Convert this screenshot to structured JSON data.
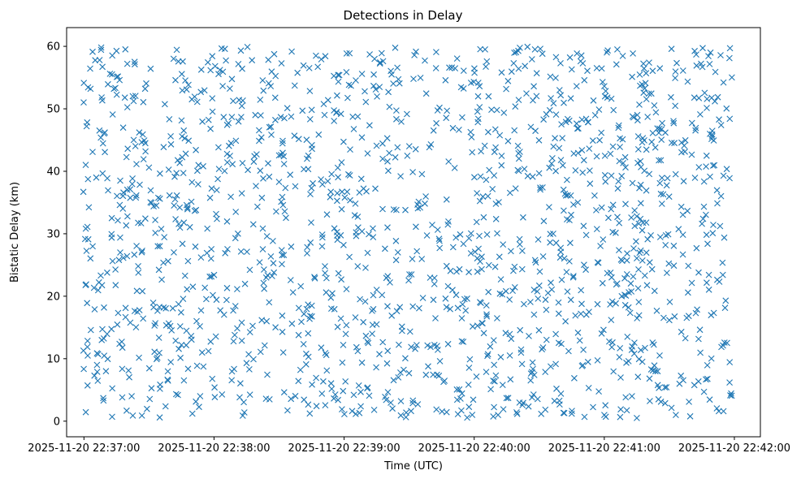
{
  "chart_data": {
    "type": "scatter",
    "title": "Detections in Delay",
    "xlabel": "Time (UTC)",
    "ylabel": "Bistatic Delay (km)",
    "marker": "x",
    "color": "#1f77b4",
    "x_ticks": [
      "2025-11-20 22:37:00",
      "2025-11-20 22:38:00",
      "2025-11-20 22:39:00",
      "2025-11-20 22:40:00",
      "2025-11-20 22:41:00",
      "2025-11-20 22:42:00"
    ],
    "y_ticks": [
      "0",
      "10",
      "20",
      "30",
      "40",
      "50",
      "60"
    ],
    "xlim": [
      "2025-11-20 22:36:52",
      "2025-11-20 22:42:12"
    ],
    "ylim": [
      -2.5,
      63
    ],
    "point_count": 1600,
    "x_range": [
      "2025-11-20 22:36:59",
      "2025-11-20 22:41:59"
    ],
    "y_range": [
      0.5,
      60
    ],
    "points": [
      [
        "2025-11-20 22:37:03",
        53.2
      ],
      [
        "2025-11-20 22:37:12",
        55.6
      ],
      [
        "2025-11-20 22:37:20",
        57.2
      ],
      [
        "2025-11-20 22:37:40",
        45.6
      ],
      [
        "2025-11-20 22:38:05",
        59.6
      ],
      [
        "2025-11-20 22:38:47",
        58.5
      ],
      [
        "2025-11-20 22:39:10",
        51.1
      ],
      [
        "2025-11-20 22:39:32",
        54.8
      ],
      [
        "2025-11-20 22:40:05",
        59.5
      ],
      [
        "2025-11-20 22:40:28",
        59.5
      ],
      [
        "2025-11-20 22:41:06",
        59.5
      ],
      [
        "2025-11-20 22:41:31",
        59.6
      ],
      [
        "2025-11-20 22:41:49",
        59.0
      ],
      [
        "2025-11-20 22:41:58",
        59.7
      ],
      [
        "2025-11-20 22:37:04",
        43.1
      ],
      [
        "2025-11-20 22:37:30",
        40.6
      ],
      [
        "2025-11-20 22:37:55",
        40.8
      ],
      [
        "2025-11-20 22:38:30",
        38.3
      ],
      [
        "2025-11-20 22:39:02",
        39.5
      ],
      [
        "2025-11-20 22:39:40",
        44.3
      ],
      [
        "2025-11-20 22:40:10",
        34.8
      ],
      [
        "2025-11-20 22:40:40",
        41.8
      ],
      [
        "2025-11-20 22:41:20",
        48.7
      ],
      [
        "2025-11-20 22:41:55",
        39.3
      ],
      [
        "2025-11-20 22:37:02",
        29.1
      ],
      [
        "2025-11-20 22:37:35",
        35.6
      ],
      [
        "2025-11-20 22:38:10",
        33.5
      ],
      [
        "2025-11-20 22:38:50",
        29.4
      ],
      [
        "2025-11-20 22:39:20",
        31.0
      ],
      [
        "2025-11-20 22:40:02",
        27.6
      ],
      [
        "2025-11-20 22:40:35",
        28.6
      ],
      [
        "2025-11-20 22:41:15",
        32.8
      ],
      [
        "2025-11-20 22:41:50",
        30.1
      ],
      [
        "2025-11-20 22:37:01",
        21.9
      ],
      [
        "2025-11-20 22:37:25",
        24.8
      ],
      [
        "2025-11-20 22:38:00",
        23.4
      ],
      [
        "2025-11-20 22:38:40",
        21.6
      ],
      [
        "2025-11-20 22:39:15",
        15.5
      ],
      [
        "2025-11-20 22:39:50",
        21.0
      ],
      [
        "2025-11-20 22:40:30",
        21.7
      ],
      [
        "2025-11-20 22:41:10",
        20.1
      ],
      [
        "2025-11-20 22:41:56",
        19.3
      ],
      [
        "2025-11-20 22:37:06",
        9.0
      ],
      [
        "2025-11-20 22:37:22",
        4.0
      ],
      [
        "2025-11-20 22:37:45",
        12.2
      ],
      [
        "2025-11-20 22:38:15",
        9.3
      ],
      [
        "2025-11-20 22:38:52",
        8.1
      ],
      [
        "2025-11-20 22:39:25",
        7.0
      ],
      [
        "2025-11-20 22:39:58",
        9.9
      ],
      [
        "2025-11-20 22:40:40",
        4.4
      ],
      [
        "2025-11-20 22:41:25",
        3.5
      ],
      [
        "2025-11-20 22:37:09",
        3.3
      ],
      [
        "2025-11-20 22:37:13",
        0.7
      ],
      [
        "2025-11-20 22:37:50",
        1.2
      ],
      [
        "2025-11-20 22:38:14",
        1.4
      ],
      [
        "2025-11-20 22:38:59",
        1.9
      ],
      [
        "2025-11-20 22:39:34",
        2.7
      ],
      [
        "2025-11-20 22:40:11",
        1.0
      ],
      [
        "2025-11-20 22:40:45",
        1.2
      ],
      [
        "2025-11-20 22:41:00",
        1.0
      ],
      [
        "2025-11-20 22:41:33",
        1.0
      ],
      [
        "2025-11-20 22:41:55",
        1.6
      ]
    ]
  }
}
